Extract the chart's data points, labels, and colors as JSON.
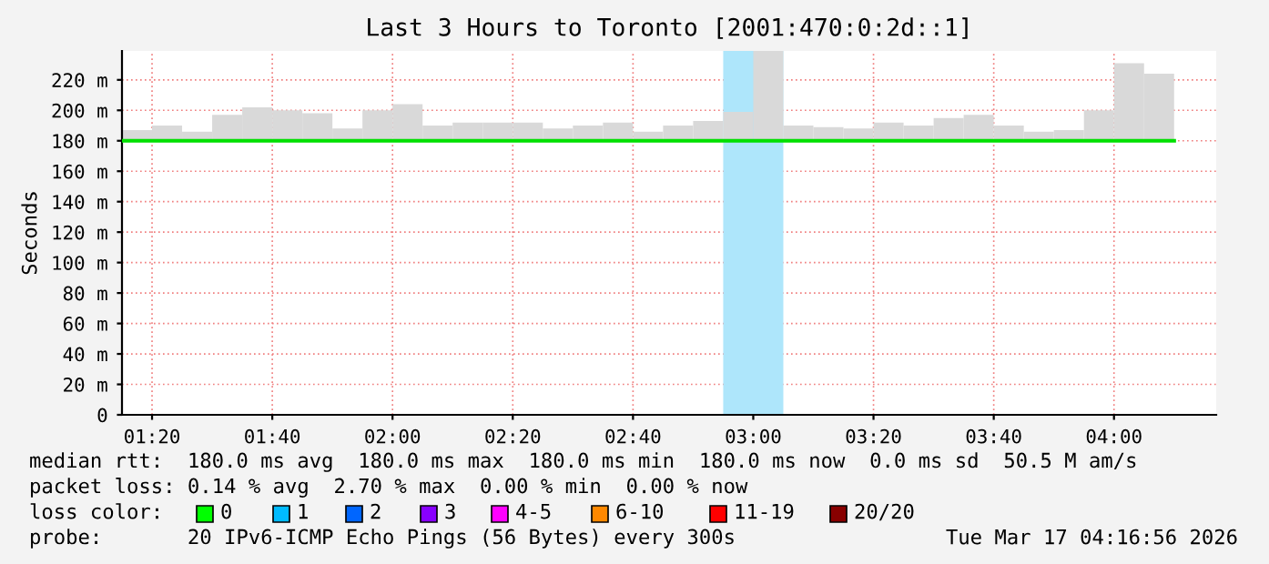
{
  "chart_data": {
    "type": "bar",
    "title": "Last 3 Hours to Toronto [2001:470:0:2d::1]",
    "ylabel": "Seconds",
    "x": [
      "2026-03-17T01:17:30",
      "2026-03-17T01:22:30",
      "2026-03-17T01:27:30",
      "2026-03-17T01:32:30",
      "2026-03-17T01:37:30",
      "2026-03-17T01:42:30",
      "2026-03-17T01:47:30",
      "2026-03-17T01:52:30",
      "2026-03-17T01:57:30",
      "2026-03-17T02:02:30",
      "2026-03-17T02:07:30",
      "2026-03-17T02:12:30",
      "2026-03-17T02:17:30",
      "2026-03-17T02:22:30",
      "2026-03-17T02:27:30",
      "2026-03-17T02:32:30",
      "2026-03-17T02:37:30",
      "2026-03-17T02:42:30",
      "2026-03-17T02:47:30",
      "2026-03-17T02:52:30",
      "2026-03-17T02:57:30",
      "2026-03-17T03:02:30",
      "2026-03-17T03:07:30",
      "2026-03-17T03:12:30",
      "2026-03-17T03:17:30",
      "2026-03-17T03:22:30",
      "2026-03-17T03:27:30",
      "2026-03-17T03:32:30",
      "2026-03-17T03:37:30",
      "2026-03-17T03:42:30",
      "2026-03-17T03:47:30",
      "2026-03-17T03:52:30",
      "2026-03-17T03:57:30",
      "2026-03-17T04:02:30",
      "2026-03-17T04:07:30"
    ],
    "color": "#d9d9d9",
    "base": [
      180,
      180,
      180,
      180,
      180,
      180,
      180,
      180,
      180,
      180,
      180,
      180,
      180,
      180,
      180,
      180,
      180,
      180,
      180,
      180,
      180,
      180,
      180,
      180,
      180,
      180,
      180,
      180,
      180,
      180,
      180,
      180,
      180,
      180,
      180
    ],
    "values": [
      7,
      10,
      6,
      17,
      22,
      20,
      18,
      8,
      20,
      24,
      10,
      12,
      12,
      12,
      8,
      10,
      12,
      6,
      10,
      13,
      19,
      59,
      10,
      9,
      8,
      12,
      10,
      15,
      17,
      10,
      6,
      7,
      20,
      51,
      44
    ],
    "series": [
      {
        "type": "line",
        "color": "#00e000",
        "x": [
          "2026-03-17T01:15",
          "2026-03-17T04:10"
        ],
        "values": [
          180,
          180
        ]
      }
    ],
    "bands": [
      {
        "axis": "x",
        "from": "2026-03-17T02:55",
        "to": "2026-03-17T03:05",
        "color": "#aee6fb"
      }
    ],
    "xlim": [
      "2026-03-17T01:15",
      "2026-03-17T04:17"
    ],
    "xticks": [
      {
        "value": "2026-03-17T01:20",
        "label": "01:20"
      },
      {
        "value": "2026-03-17T01:40",
        "label": "01:40"
      },
      {
        "value": "2026-03-17T02:00",
        "label": "02:00"
      },
      {
        "value": "2026-03-17T02:20",
        "label": "02:20"
      },
      {
        "value": "2026-03-17T02:40",
        "label": "02:40"
      },
      {
        "value": "2026-03-17T03:00",
        "label": "03:00"
      },
      {
        "value": "2026-03-17T03:20",
        "label": "03:20"
      },
      {
        "value": "2026-03-17T03:40",
        "label": "03:40"
      },
      {
        "value": "2026-03-17T04:00",
        "label": "04:00"
      }
    ],
    "ylim": [
      0,
      239
    ],
    "yticks": [
      0,
      {
        "value": 20,
        "label": "20 m"
      },
      {
        "value": 40,
        "label": "40 m"
      },
      {
        "value": 60,
        "label": "60 m"
      },
      {
        "value": 80,
        "label": "80 m"
      },
      {
        "value": 100,
        "label": "100 m"
      },
      {
        "value": 120,
        "label": "120 m"
      },
      {
        "value": 140,
        "label": "140 m"
      },
      {
        "value": 160,
        "label": "160 m"
      },
      {
        "value": 180,
        "label": "180 m"
      },
      {
        "value": 200,
        "label": "200 m"
      },
      {
        "value": 220,
        "label": "220 m"
      }
    ],
    "grid": true,
    "annotations": [
      "median rtt:  180.0 ms avg  180.0 ms max  180.0 ms min  180.0 ms now  0.0 ms sd  50.5 M am/s",
      "packet loss: 0.14 % avg  2.70 % max  0.00 % min  0.00 % now",
      "loss color:",
      "0",
      "1",
      "2",
      "3",
      "4-5",
      "6-10",
      "11-19",
      "20/20",
      "probe:       20 IPv6-ICMP Echo Pings (56 Bytes) every 300s",
      "Tue Mar 17 04:16:56 2026"
    ]
  }
}
